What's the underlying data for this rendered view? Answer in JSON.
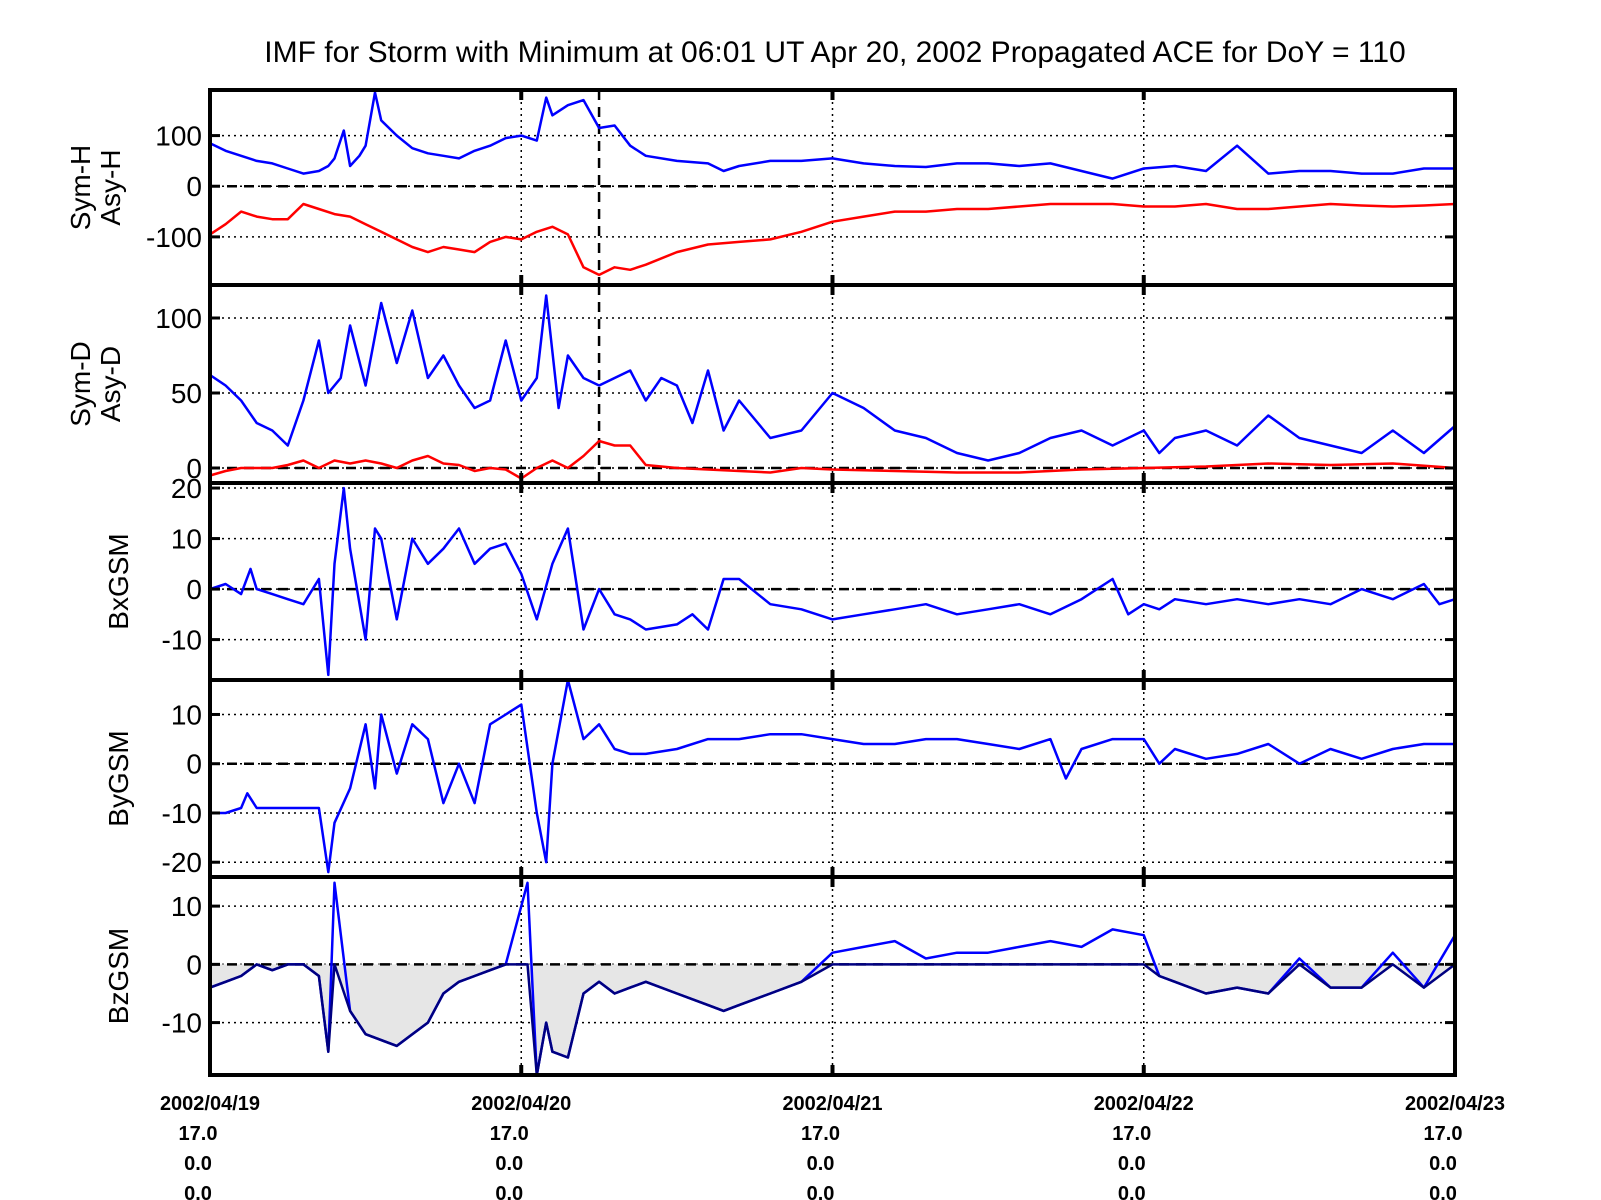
{
  "chart_data": {
    "type": "line",
    "title": "IMF for Storm with Minimum at 06:01 UT Apr 20, 2002  Propagated ACE for DoY = 110",
    "x_unit": "days from 2002/04/19",
    "x_range": [
      0,
      4
    ],
    "x_ticks": [
      {
        "x": 0,
        "lines": [
          "2002/04/19",
          "17.0",
          "0.0",
          "0.0"
        ]
      },
      {
        "x": 1,
        "lines": [
          "2002/04/20",
          "17.0",
          "0.0",
          "0.0"
        ]
      },
      {
        "x": 2,
        "lines": [
          "2002/04/21",
          "17.0",
          "0.0",
          "0.0"
        ]
      },
      {
        "x": 3,
        "lines": [
          "2002/04/22",
          "17.0",
          "0.0",
          "0.0"
        ]
      },
      {
        "x": 4,
        "lines": [
          "2002/04/23",
          "17.0",
          "0.0",
          "0.0"
        ]
      }
    ],
    "storm_minimum_x": 1.25,
    "colors": {
      "blue": "#0000ff",
      "red": "#ff0000",
      "navy": "#000080",
      "fill": "#e6e6e6"
    },
    "panels": [
      {
        "ylabel": [
          "Sym-H",
          "Asy-H"
        ],
        "ylim": [
          -195,
          190
        ],
        "yticks": [
          100,
          0,
          -100
        ],
        "ytick_labels": [
          "100",
          "0",
          "-100"
        ],
        "show_storm_line": true,
        "series": [
          {
            "color": "#0000ff",
            "x": [
              0,
              0.05,
              0.1,
              0.15,
              0.2,
              0.25,
              0.3,
              0.35,
              0.38,
              0.4,
              0.43,
              0.45,
              0.48,
              0.5,
              0.53,
              0.55,
              0.6,
              0.65,
              0.7,
              0.75,
              0.8,
              0.85,
              0.9,
              0.95,
              1.0,
              1.05,
              1.08,
              1.1,
              1.15,
              1.2,
              1.25,
              1.3,
              1.35,
              1.4,
              1.5,
              1.6,
              1.65,
              1.7,
              1.8,
              1.9,
              2.0,
              2.1,
              2.2,
              2.3,
              2.4,
              2.5,
              2.6,
              2.7,
              2.8,
              2.9,
              3.0,
              3.1,
              3.15,
              3.2,
              3.3,
              3.4,
              3.5,
              3.6,
              3.7,
              3.8,
              3.9,
              4.0
            ],
            "y": [
              85,
              70,
              60,
              50,
              45,
              35,
              25,
              30,
              40,
              55,
              110,
              40,
              60,
              80,
              185,
              130,
              100,
              75,
              65,
              60,
              55,
              70,
              80,
              95,
              100,
              90,
              175,
              140,
              160,
              170,
              115,
              120,
              80,
              60,
              50,
              45,
              30,
              40,
              50,
              50,
              55,
              45,
              40,
              38,
              45,
              45,
              40,
              45,
              30,
              15,
              35,
              40,
              35,
              30,
              80,
              25,
              30,
              30,
              25,
              25,
              35,
              35
            ]
          },
          {
            "color": "#ff0000",
            "x": [
              0,
              0.05,
              0.1,
              0.15,
              0.2,
              0.25,
              0.3,
              0.35,
              0.4,
              0.45,
              0.5,
              0.55,
              0.6,
              0.65,
              0.7,
              0.75,
              0.8,
              0.85,
              0.9,
              0.95,
              1.0,
              1.05,
              1.1,
              1.15,
              1.2,
              1.25,
              1.3,
              1.35,
              1.4,
              1.5,
              1.6,
              1.7,
              1.8,
              1.9,
              2.0,
              2.1,
              2.2,
              2.3,
              2.4,
              2.5,
              2.6,
              2.7,
              2.8,
              2.9,
              3.0,
              3.1,
              3.2,
              3.3,
              3.4,
              3.5,
              3.6,
              3.7,
              3.8,
              3.9,
              4.0
            ],
            "y": [
              -95,
              -75,
              -50,
              -60,
              -65,
              -65,
              -35,
              -45,
              -55,
              -60,
              -75,
              -90,
              -105,
              -120,
              -130,
              -120,
              -125,
              -130,
              -110,
              -100,
              -105,
              -90,
              -80,
              -95,
              -160,
              -175,
              -160,
              -165,
              -155,
              -130,
              -115,
              -110,
              -105,
              -90,
              -70,
              -60,
              -50,
              -50,
              -45,
              -45,
              -40,
              -35,
              -35,
              -35,
              -40,
              -40,
              -35,
              -45,
              -45,
              -40,
              -35,
              -38,
              -40,
              -38,
              -35
            ]
          }
        ]
      },
      {
        "ylabel": [
          "Sym-D",
          "Asy-D"
        ],
        "ylim": [
          -10,
          122
        ],
        "yticks": [
          100,
          50,
          0
        ],
        "ytick_labels": [
          "100",
          "50",
          "0"
        ],
        "show_storm_line": true,
        "series": [
          {
            "color": "#0000ff",
            "x": [
              0,
              0.05,
              0.1,
              0.15,
              0.2,
              0.25,
              0.3,
              0.35,
              0.38,
              0.42,
              0.45,
              0.5,
              0.55,
              0.6,
              0.65,
              0.7,
              0.75,
              0.8,
              0.85,
              0.9,
              0.95,
              1.0,
              1.05,
              1.08,
              1.12,
              1.15,
              1.2,
              1.25,
              1.3,
              1.35,
              1.4,
              1.45,
              1.5,
              1.55,
              1.6,
              1.65,
              1.7,
              1.8,
              1.9,
              2.0,
              2.1,
              2.2,
              2.3,
              2.4,
              2.5,
              2.6,
              2.7,
              2.8,
              2.9,
              3.0,
              3.05,
              3.1,
              3.2,
              3.3,
              3.4,
              3.5,
              3.6,
              3.7,
              3.8,
              3.9,
              4.0
            ],
            "y": [
              62,
              55,
              45,
              30,
              25,
              15,
              45,
              85,
              50,
              60,
              95,
              55,
              110,
              70,
              105,
              60,
              75,
              55,
              40,
              45,
              85,
              45,
              60,
              115,
              40,
              75,
              60,
              55,
              60,
              65,
              45,
              60,
              55,
              30,
              65,
              25,
              45,
              20,
              25,
              50,
              40,
              25,
              20,
              10,
              5,
              10,
              20,
              25,
              15,
              25,
              10,
              20,
              25,
              15,
              35,
              20,
              15,
              10,
              25,
              10,
              28
            ]
          },
          {
            "color": "#ff0000",
            "x": [
              0,
              0.05,
              0.1,
              0.15,
              0.2,
              0.25,
              0.3,
              0.35,
              0.4,
              0.45,
              0.5,
              0.55,
              0.6,
              0.65,
              0.7,
              0.75,
              0.8,
              0.85,
              0.9,
              0.95,
              1.0,
              1.05,
              1.1,
              1.15,
              1.2,
              1.25,
              1.3,
              1.35,
              1.4,
              1.5,
              1.6,
              1.7,
              1.8,
              1.9,
              2.0,
              2.2,
              2.4,
              2.6,
              2.8,
              3.0,
              3.2,
              3.4,
              3.6,
              3.8,
              4.0
            ],
            "y": [
              -5,
              -2,
              0,
              0,
              0,
              2,
              5,
              0,
              5,
              3,
              5,
              3,
              0,
              5,
              8,
              3,
              2,
              -2,
              0,
              -1,
              -7,
              0,
              5,
              0,
              8,
              18,
              15,
              15,
              2,
              0,
              -1,
              -2,
              -3,
              0,
              -1,
              -2,
              -3,
              -3,
              -1,
              0,
              1,
              3,
              2,
              3,
              0
            ]
          }
        ]
      },
      {
        "ylabel": [
          "BxGSM"
        ],
        "ylim": [
          -18,
          21
        ],
        "yticks": [
          20,
          10,
          0,
          -10
        ],
        "ytick_labels": [
          "20",
          "10",
          "0",
          "-10"
        ],
        "show_storm_line": false,
        "series": [
          {
            "color": "#0000ff",
            "x": [
              0,
              0.05,
              0.1,
              0.13,
              0.15,
              0.2,
              0.25,
              0.3,
              0.35,
              0.38,
              0.4,
              0.43,
              0.45,
              0.5,
              0.53,
              0.55,
              0.6,
              0.65,
              0.7,
              0.75,
              0.8,
              0.85,
              0.9,
              0.95,
              1.0,
              1.05,
              1.1,
              1.15,
              1.2,
              1.25,
              1.3,
              1.35,
              1.4,
              1.5,
              1.55,
              1.6,
              1.65,
              1.7,
              1.8,
              1.9,
              2.0,
              2.1,
              2.2,
              2.3,
              2.4,
              2.5,
              2.6,
              2.7,
              2.8,
              2.9,
              2.95,
              3.0,
              3.05,
              3.1,
              3.2,
              3.3,
              3.4,
              3.5,
              3.6,
              3.7,
              3.8,
              3.9,
              3.95,
              4.0
            ],
            "y": [
              0,
              1,
              -1,
              4,
              0,
              -1,
              -2,
              -3,
              2,
              -17,
              5,
              20,
              8,
              -10,
              12,
              10,
              -6,
              10,
              5,
              8,
              12,
              5,
              8,
              9,
              3,
              -6,
              5,
              12,
              -8,
              0,
              -5,
              -6,
              -8,
              -7,
              -5,
              -8,
              2,
              2,
              -3,
              -4,
              -6,
              -5,
              -4,
              -3,
              -5,
              -4,
              -3,
              -5,
              -2,
              2,
              -5,
              -3,
              -4,
              -2,
              -3,
              -2,
              -3,
              -2,
              -3,
              0,
              -2,
              1,
              -3,
              -2
            ]
          }
        ]
      },
      {
        "ylabel": [
          "ByGSM"
        ],
        "ylim": [
          -23,
          17
        ],
        "yticks": [
          10,
          0,
          -10,
          -20
        ],
        "ytick_labels": [
          "10",
          "0",
          "-10",
          "-20"
        ],
        "show_storm_line": false,
        "series": [
          {
            "color": "#0000ff",
            "x": [
              0,
              0.05,
              0.1,
              0.12,
              0.15,
              0.2,
              0.25,
              0.3,
              0.35,
              0.38,
              0.4,
              0.45,
              0.5,
              0.53,
              0.55,
              0.6,
              0.65,
              0.7,
              0.75,
              0.8,
              0.85,
              0.9,
              0.95,
              1.0,
              1.05,
              1.08,
              1.1,
              1.15,
              1.2,
              1.25,
              1.3,
              1.35,
              1.4,
              1.5,
              1.6,
              1.7,
              1.8,
              1.9,
              2.0,
              2.1,
              2.2,
              2.3,
              2.4,
              2.5,
              2.6,
              2.7,
              2.75,
              2.8,
              2.9,
              3.0,
              3.05,
              3.1,
              3.2,
              3.3,
              3.4,
              3.5,
              3.6,
              3.7,
              3.8,
              3.9,
              4.0
            ],
            "y": [
              -10,
              -10,
              -9,
              -6,
              -9,
              -9,
              -9,
              -9,
              -9,
              -22,
              -12,
              -5,
              8,
              -5,
              10,
              -2,
              8,
              5,
              -8,
              0,
              -8,
              8,
              10,
              12,
              -10,
              -20,
              0,
              17,
              5,
              8,
              3,
              2,
              2,
              3,
              5,
              5,
              6,
              6,
              5,
              4,
              4,
              5,
              5,
              4,
              3,
              5,
              -3,
              3,
              5,
              5,
              0,
              3,
              1,
              2,
              4,
              0,
              3,
              1,
              3,
              4,
              4
            ]
          }
        ]
      },
      {
        "ylabel": [
          "BzGSM"
        ],
        "ylim": [
          -19,
          15
        ],
        "yticks": [
          10,
          0,
          -10
        ],
        "ytick_labels": [
          "10",
          "0",
          "-10"
        ],
        "show_storm_line": false,
        "fill_negative": true,
        "series": [
          {
            "color": "#0000ff",
            "x": [
              0,
              0.05,
              0.1,
              0.15,
              0.2,
              0.25,
              0.3,
              0.35,
              0.38,
              0.4,
              0.45,
              0.5,
              0.55,
              0.6,
              0.65,
              0.7,
              0.75,
              0.8,
              0.85,
              0.9,
              0.95,
              1.0,
              1.02,
              1.05,
              1.08,
              1.1,
              1.15,
              1.2,
              1.25,
              1.3,
              1.35,
              1.4,
              1.5,
              1.6,
              1.65,
              1.7,
              1.8,
              1.9,
              2.0,
              2.1,
              2.2,
              2.3,
              2.4,
              2.5,
              2.6,
              2.7,
              2.8,
              2.9,
              3.0,
              3.05,
              3.1,
              3.2,
              3.3,
              3.4,
              3.5,
              3.6,
              3.7,
              3.8,
              3.9,
              4.0
            ],
            "y": [
              -4,
              -3,
              -2,
              0,
              -1,
              0,
              0,
              -2,
              -15,
              14,
              -8,
              -12,
              -13,
              -14,
              -12,
              -10,
              -5,
              -3,
              -2,
              -1,
              0,
              10,
              14,
              -20,
              -10,
              -15,
              -16,
              -5,
              -3,
              -5,
              -4,
              -3,
              -5,
              -7,
              -8,
              -7,
              -5,
              -3,
              2,
              3,
              4,
              1,
              2,
              2,
              3,
              4,
              3,
              6,
              5,
              -2,
              -3,
              -5,
              -4,
              -5,
              1,
              -4,
              -4,
              2,
              -4,
              5
            ]
          }
        ]
      }
    ]
  }
}
